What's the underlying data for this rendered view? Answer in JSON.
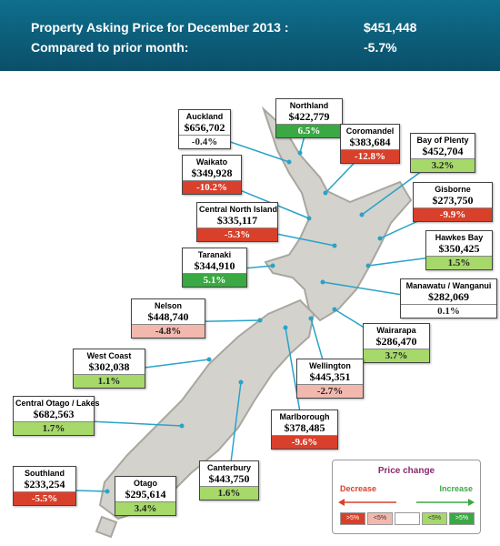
{
  "header": {
    "title": "Property Asking Price for December 2013 :",
    "value": "$451,448",
    "subtitle": "Compared to prior month:",
    "change": "-5.7%"
  },
  "regions": [
    {
      "name": "Auckland",
      "price": "$656,702",
      "change": "-0.4%",
      "color": "#ffffff"
    },
    {
      "name": "Northland",
      "price": "$422,779",
      "change": "6.5%",
      "color": "#3aa843"
    },
    {
      "name": "Coromandel",
      "price": "$383,684",
      "change": "-12.8%",
      "color": "#d9402b"
    },
    {
      "name": "Bay of Plenty",
      "price": "$452,704",
      "change": "3.2%",
      "color": "#a6d86a"
    },
    {
      "name": "Waikato",
      "price": "$349,928",
      "change": "-10.2%",
      "color": "#d9402b"
    },
    {
      "name": "Gisborne",
      "price": "$273,750",
      "change": "-9.9%",
      "color": "#d9402b"
    },
    {
      "name": "Central North Island",
      "price": "$335,117",
      "change": "-5.3%",
      "color": "#d9402b"
    },
    {
      "name": "Hawkes Bay",
      "price": "$350,425",
      "change": "1.5%",
      "color": "#a6d86a"
    },
    {
      "name": "Taranaki",
      "price": "$344,910",
      "change": "5.1%",
      "color": "#3aa843"
    },
    {
      "name": "Manawatu / Wanganui",
      "price": "$282,069",
      "change": "0.1%",
      "color": "#ffffff"
    },
    {
      "name": "Nelson",
      "price": "$448,740",
      "change": "-4.8%",
      "color": "#f2b8ae"
    },
    {
      "name": "Wairarapa",
      "price": "$286,470",
      "change": "3.7%",
      "color": "#a6d86a"
    },
    {
      "name": "West Coast",
      "price": "$302,038",
      "change": "1.1%",
      "color": "#a6d86a"
    },
    {
      "name": "Wellington",
      "price": "$445,351",
      "change": "-2.7%",
      "color": "#f2b8ae"
    },
    {
      "name": "Central Otago / Lakes",
      "price": "$682,563",
      "change": "1.7%",
      "color": "#a6d86a"
    },
    {
      "name": "Marlborough",
      "price": "$378,485",
      "change": "-9.6%",
      "color": "#d9402b"
    },
    {
      "name": "Southland",
      "price": "$233,254",
      "change": "-5.5%",
      "color": "#d9402b"
    },
    {
      "name": "Canterbury",
      "price": "$443,750",
      "change": "1.6%",
      "color": "#a6d86a"
    },
    {
      "name": "Otago",
      "price": "$295,614",
      "change": "3.4%",
      "color": "#a6d86a"
    }
  ],
  "legend": {
    "title": "Price change",
    "decrease": "Decrease",
    "increase": "Increase",
    "keys": [
      {
        "label": ">5%",
        "color": "#d9402b"
      },
      {
        "label": "<5%",
        "color": "#f2b8ae"
      },
      {
        "color": "#ffffff"
      },
      {
        "label": "<5%",
        "color": "#a6d86a"
      },
      {
        "label": ">5%",
        "color": "#3aa843"
      }
    ]
  }
}
